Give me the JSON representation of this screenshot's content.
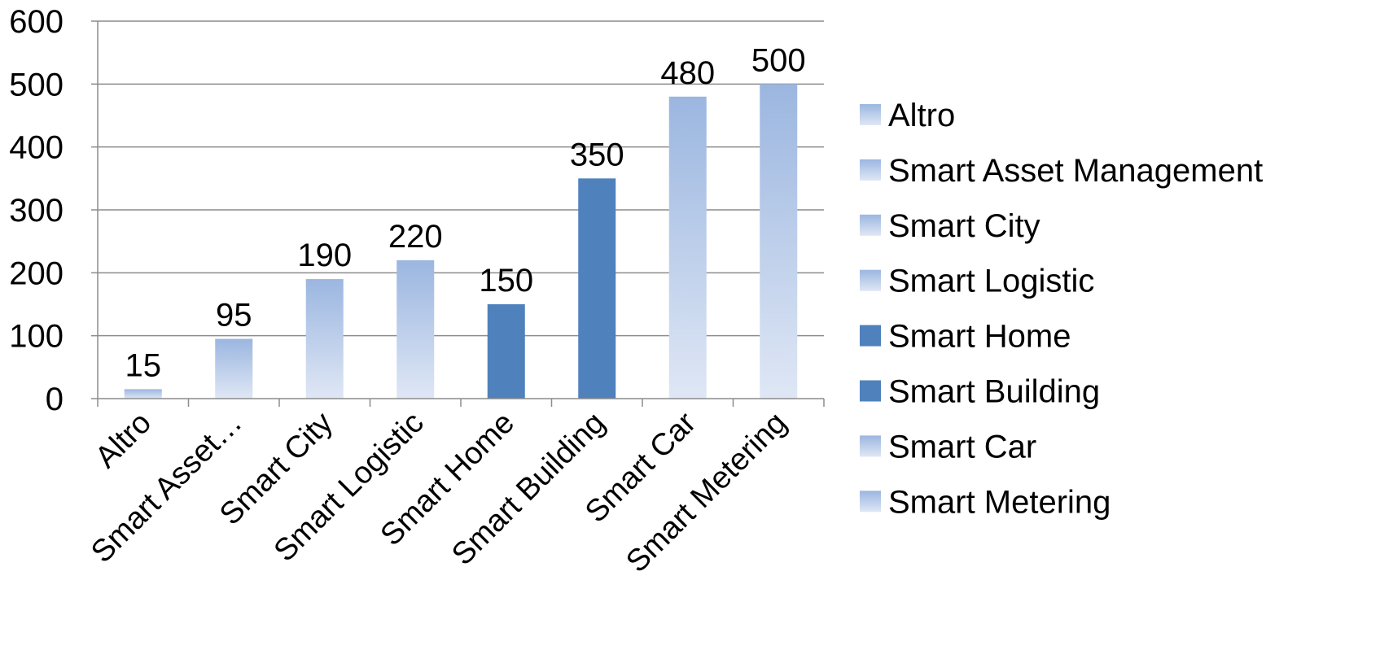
{
  "chart_data": {
    "type": "bar",
    "categories": [
      "Altro",
      "Smart Asset Management",
      "Smart City",
      "Smart Logistic",
      "Smart Home",
      "Smart Building",
      "Smart Car",
      "Smart Metering"
    ],
    "axis_categories": [
      "Altro",
      "Smart Asset…",
      "Smart City",
      "Smart Logistic",
      "Smart Home",
      "Smart Building",
      "Smart Car",
      "Smart Metering"
    ],
    "values": [
      15,
      95,
      190,
      220,
      150,
      350,
      480,
      500
    ],
    "data_labels": [
      "15",
      "95",
      "190",
      "220",
      "150",
      "350",
      "480",
      "500"
    ],
    "bar_styles": [
      "light",
      "light",
      "light",
      "light",
      "dark",
      "dark",
      "light",
      "light"
    ],
    "ylim": [
      0,
      600
    ],
    "yticks": [
      "0",
      "100",
      "200",
      "300",
      "400",
      "500",
      "600"
    ],
    "title": "",
    "xlabel": "",
    "ylabel": "",
    "grid": true,
    "legend_position": "right",
    "colors": {
      "dark": "#4f81bd",
      "light_top": "#9bb6e0",
      "light_bottom": "#dfe7f5",
      "gridline": "#8c8c8c",
      "axis": "#8c8c8c"
    }
  }
}
